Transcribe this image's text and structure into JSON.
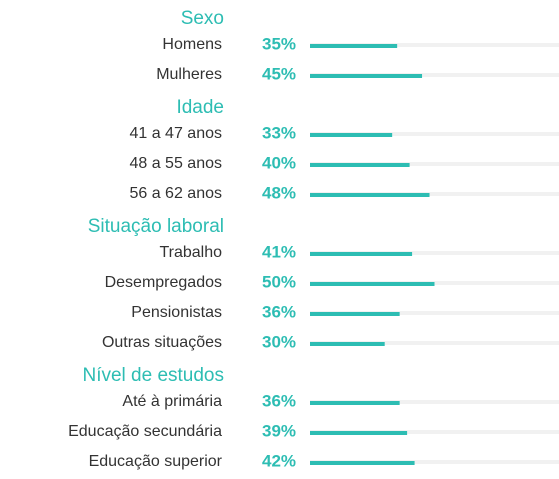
{
  "chart_data": {
    "type": "bar",
    "color": "#2dbdb3",
    "track_color": "#f1f1f1",
    "xlim": [
      0,
      100
    ],
    "groups": [
      {
        "title": "Sexo",
        "categories": [
          "Homens",
          "Mulheres"
        ],
        "values": [
          35,
          45
        ],
        "value_labels": [
          "35%",
          "45%"
        ]
      },
      {
        "title": "Idade",
        "categories": [
          "41 a 47 anos",
          "48 a 55 anos",
          "56 a 62 anos"
        ],
        "values": [
          33,
          40,
          48
        ],
        "value_labels": [
          "33%",
          "40%",
          "48%"
        ]
      },
      {
        "title": "Situação laboral",
        "categories": [
          "Trabalho",
          "Desempregados",
          "Pensionistas",
          "Outras situações"
        ],
        "values": [
          41,
          50,
          36,
          30
        ],
        "value_labels": [
          "41%",
          "50%",
          "36%",
          "30%"
        ]
      },
      {
        "title": "Nível de estudos",
        "categories": [
          "Até à primária",
          "Educação secundária",
          "Educação superior"
        ],
        "values": [
          36,
          39,
          42
        ],
        "value_labels": [
          "36%",
          "39%",
          "42%"
        ]
      }
    ]
  }
}
